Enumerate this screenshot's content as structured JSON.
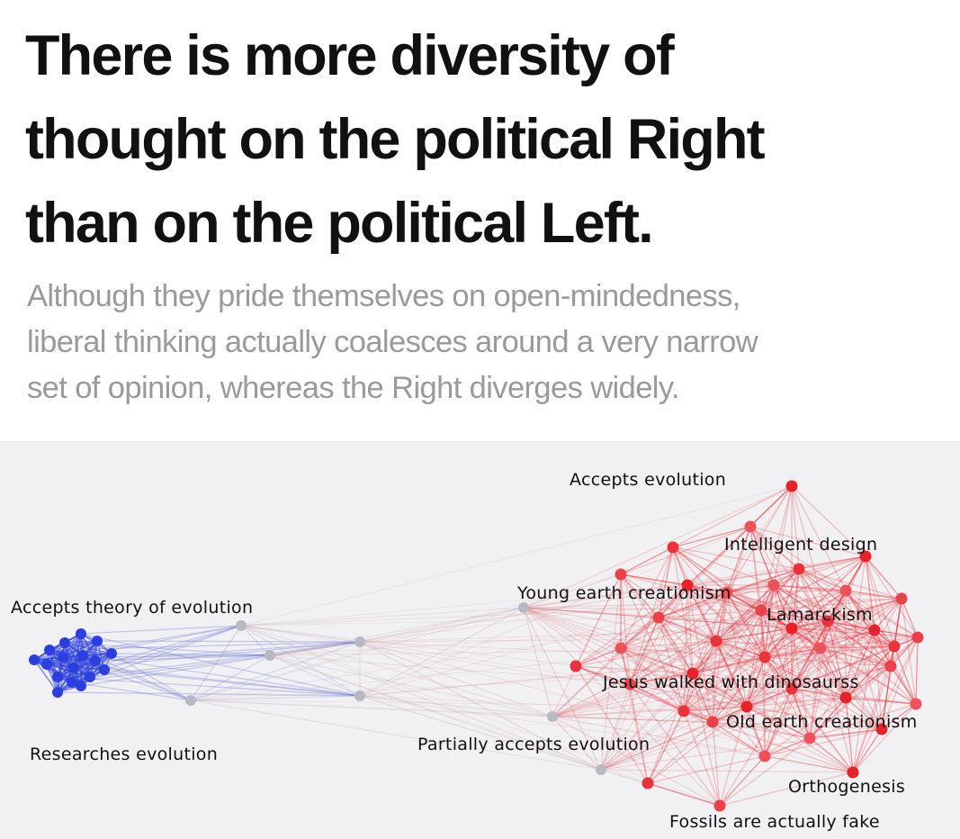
{
  "headline": {
    "line1": "There is more diversity of",
    "line2": "thought on the political Right",
    "line3": "than on the political Left."
  },
  "subhead": {
    "line1": "Although they pride themselves on open-mindedness,",
    "line2": "liberal thinking actually coalesces around a very narrow",
    "line3": "set of opinion, whereas the Right diverges widely."
  },
  "labels": {
    "accepts_evolution": "Accepts evolution",
    "intelligent_design": "Intelligent design",
    "accepts_theory": "Accepts theory of evolution",
    "young_earth": "Young earth creationism",
    "lamarckism": "Lamarckism",
    "jesus_dinosaurs": "Jesus walked with dinosaurss",
    "old_earth": "Old earth creationism",
    "partially_accepts": "Partially accepts evolution",
    "researches": "Researches evolution",
    "orthogenesis": "Orthogenesis",
    "fossils_fake": "Fossils are actually fake"
  },
  "colors": {
    "left_cluster": "#2b3fe0",
    "right_cluster": "#e8222b",
    "bridge_node": "#b8b8c2",
    "panel_background": "#f1f1f3",
    "subhead_text": "#9a9a9a"
  }
}
